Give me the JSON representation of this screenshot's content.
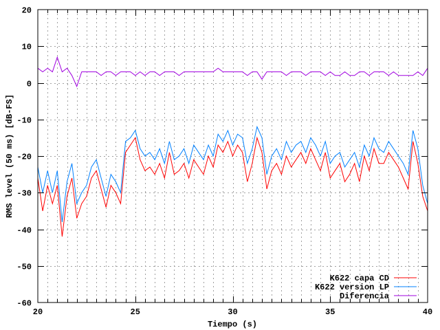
{
  "chart_data": {
    "type": "line",
    "title": "",
    "xlabel": "Tiempo (s)",
    "ylabel": "RMS level (50 ms) [dB-FS]",
    "xlim": [
      20,
      40
    ],
    "ylim": [
      -60,
      20
    ],
    "xticks": [
      20,
      25,
      30,
      35,
      40
    ],
    "yticks": [
      -60,
      -50,
      -40,
      -30,
      -20,
      -10,
      0,
      10,
      20
    ],
    "grid": true,
    "legend": "bottom-right",
    "x": [
      20,
      20.25,
      20.5,
      20.75,
      21,
      21.25,
      21.5,
      21.75,
      22,
      22.25,
      22.5,
      22.75,
      23,
      23.25,
      23.5,
      23.75,
      24,
      24.25,
      24.5,
      24.75,
      25,
      25.25,
      25.5,
      25.75,
      26,
      26.25,
      26.5,
      26.75,
      27,
      27.25,
      27.5,
      27.75,
      28,
      28.25,
      28.5,
      28.75,
      29,
      29.25,
      29.5,
      29.75,
      30,
      30.25,
      30.5,
      30.75,
      31,
      31.25,
      31.5,
      31.75,
      32,
      32.25,
      32.5,
      32.75,
      33,
      33.25,
      33.5,
      33.75,
      34,
      34.25,
      34.5,
      34.75,
      35,
      35.25,
      35.5,
      35.75,
      36,
      36.25,
      36.5,
      36.75,
      37,
      37.25,
      37.5,
      37.75,
      38,
      38.25,
      38.5,
      38.75,
      39,
      39.25,
      39.5,
      39.75,
      40
    ],
    "series": [
      {
        "name": "K622 capa CD",
        "color": "#ff0000",
        "values": [
          -26,
          -35,
          -28,
          -33,
          -28,
          -42,
          -31,
          -26,
          -37,
          -33,
          -31,
          -26,
          -24,
          -29,
          -34,
          -28,
          -30,
          -33,
          -19,
          -17,
          -15,
          -21,
          -24,
          -23,
          -25,
          -22,
          -26,
          -19,
          -25,
          -24,
          -22,
          -26,
          -21,
          -23,
          -25,
          -20,
          -23,
          -17,
          -19,
          -16,
          -20,
          -17,
          -19,
          -27,
          -22,
          -15,
          -19,
          -29,
          -24,
          -22,
          -25,
          -20,
          -23,
          -21,
          -19,
          -22,
          -18,
          -21,
          -24,
          -19,
          -26,
          -24,
          -22,
          -27,
          -25,
          -22,
          -27,
          -20,
          -24,
          -18,
          -22,
          -22,
          -19,
          -21,
          -23,
          -26,
          -29,
          -16,
          -22,
          -31,
          -35
        ]
      },
      {
        "name": "K622 version LP",
        "color": "#0080ff",
        "values": [
          -23,
          -30,
          -24,
          -30,
          -24,
          -38,
          -27,
          -22,
          -33,
          -30,
          -28,
          -23,
          -21,
          -26,
          -31,
          -25,
          -27,
          -30,
          -16,
          -15,
          -13,
          -18,
          -20,
          -19,
          -21,
          -18,
          -22,
          -16,
          -21,
          -20,
          -18,
          -22,
          -17,
          -19,
          -21,
          -17,
          -20,
          -14,
          -16,
          -13,
          -17,
          -14,
          -15,
          -22,
          -18,
          -12,
          -15,
          -25,
          -20,
          -18,
          -21,
          -16,
          -19,
          -17,
          -16,
          -19,
          -15,
          -17,
          -20,
          -16,
          -22,
          -20,
          -19,
          -23,
          -21,
          -19,
          -23,
          -17,
          -20,
          -15,
          -18,
          -19,
          -16,
          -18,
          -20,
          -22,
          -25,
          -13,
          -18,
          -28,
          -33
        ]
      },
      {
        "name": "Diferencia",
        "color": "#a000e0",
        "values": [
          4,
          3,
          4,
          3,
          7,
          3,
          4,
          2,
          -1,
          3,
          3,
          3,
          3,
          2,
          3,
          3,
          2,
          3,
          3,
          3,
          2,
          3,
          2,
          3,
          3,
          2,
          3,
          3,
          3,
          2,
          3,
          3,
          3,
          3,
          3,
          3,
          3,
          4,
          3,
          3,
          3,
          3,
          3,
          2,
          3,
          3,
          1,
          3,
          3,
          3,
          3,
          2,
          3,
          3,
          3,
          2,
          3,
          3,
          3,
          2,
          3,
          2,
          2,
          3,
          2,
          2,
          3,
          3,
          2,
          3,
          3,
          3,
          2,
          3,
          2,
          2,
          2,
          2,
          3,
          2,
          4
        ]
      }
    ]
  }
}
